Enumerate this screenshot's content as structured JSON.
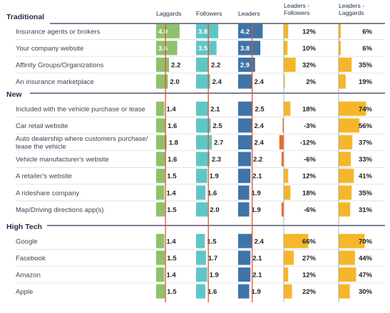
{
  "chart_data": {
    "type": "bar",
    "columns": [
      {
        "key": "laggards",
        "label": "Laggards",
        "color": "#8fc16c"
      },
      {
        "key": "followers",
        "label": "Followers",
        "color": "#5fc6c6"
      },
      {
        "key": "leaders",
        "label": "Leaders",
        "color": "#3f74a8"
      },
      {
        "key": "leaders_followers",
        "label": "Leaders -\nFollowers",
        "color": "#f5b62a",
        "negative_color": "#ef6a2a"
      },
      {
        "key": "leaders_laggards",
        "label": "Leaders -\nLaggards",
        "color": "#f5b62a"
      }
    ],
    "reference_lines": [
      {
        "column": "laggards",
        "value": 1.6
      },
      {
        "column": "followers",
        "value": 2.1
      },
      {
        "column": "leaders",
        "value": 2.4
      }
    ],
    "value_range": [
      0,
      5
    ],
    "groups": [
      {
        "name": "Traditional",
        "rows": [
          {
            "label": "Insurance agents or brokers",
            "laggards": 4.0,
            "followers": 3.8,
            "leaders": 4.2,
            "leaders_followers": 12,
            "leaders_laggards": 6
          },
          {
            "label": "Your company website",
            "laggards": 3.6,
            "followers": 3.5,
            "leaders": 3.8,
            "leaders_followers": 10,
            "leaders_laggards": 6
          },
          {
            "label": "Affinity Groups/Organizations",
            "laggards": 2.2,
            "followers": 2.2,
            "leaders": 2.9,
            "leaders_followers": 32,
            "leaders_laggards": 35
          },
          {
            "label": "An insurance marketplace",
            "laggards": 2.0,
            "followers": 2.4,
            "leaders": 2.4,
            "leaders_followers": 2,
            "leaders_laggards": 19
          }
        ]
      },
      {
        "name": "New",
        "rows": [
          {
            "label": "Included with the vehicle purchase or lease",
            "laggards": 1.4,
            "followers": 2.1,
            "leaders": 2.5,
            "leaders_followers": 18,
            "leaders_laggards": 74
          },
          {
            "label": "Car retail website",
            "laggards": 1.6,
            "followers": 2.5,
            "leaders": 2.4,
            "leaders_followers": -3,
            "leaders_laggards": 56
          },
          {
            "label": "Auto dealership where customers purchase/\nlease the vehicle",
            "laggards": 1.8,
            "followers": 2.7,
            "leaders": 2.4,
            "leaders_followers": -12,
            "leaders_laggards": 37
          },
          {
            "label": "Vehicle manufacturer's website",
            "laggards": 1.6,
            "followers": 2.3,
            "leaders": 2.2,
            "leaders_followers": -6,
            "leaders_laggards": 33
          },
          {
            "label": "A retailer's website",
            "laggards": 1.5,
            "followers": 1.9,
            "leaders": 2.1,
            "leaders_followers": 12,
            "leaders_laggards": 41
          },
          {
            "label": "A rideshare company",
            "laggards": 1.4,
            "followers": 1.6,
            "leaders": 1.9,
            "leaders_followers": 18,
            "leaders_laggards": 35
          },
          {
            "label": "Map/Driving directions app(s)",
            "laggards": 1.5,
            "followers": 2.0,
            "leaders": 1.9,
            "leaders_followers": -6,
            "leaders_laggards": 31
          }
        ]
      },
      {
        "name": "High Tech",
        "rows": [
          {
            "label": "Google",
            "laggards": 1.4,
            "followers": 1.5,
            "leaders": 2.4,
            "leaders_followers": 66,
            "leaders_laggards": 70
          },
          {
            "label": "Facebook",
            "laggards": 1.5,
            "followers": 1.7,
            "leaders": 2.1,
            "leaders_followers": 27,
            "leaders_laggards": 44
          },
          {
            "label": "Amazon",
            "laggards": 1.4,
            "followers": 1.9,
            "leaders": 2.1,
            "leaders_followers": 12,
            "leaders_laggards": 47
          },
          {
            "label": "Apple",
            "laggards": 1.5,
            "followers": 1.6,
            "leaders": 1.9,
            "leaders_followers": 22,
            "leaders_laggards": 30
          }
        ]
      }
    ]
  }
}
